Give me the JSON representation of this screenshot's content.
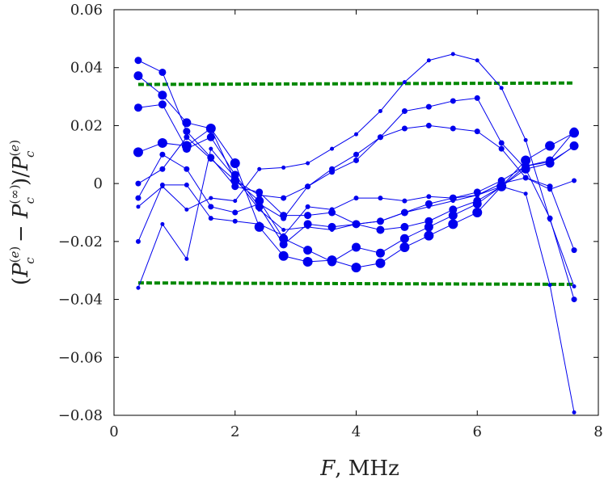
{
  "chart_data": {
    "type": "line",
    "title": "",
    "xlabel": "F, MHz",
    "ylabel": "(P_c^(e) − P_c^(∞)) / P_c^(e)",
    "xlim": [
      0,
      8
    ],
    "ylim": [
      -0.08,
      0.06
    ],
    "xticks": [
      0,
      2,
      4,
      6,
      8
    ],
    "xtick_labels": [
      "0",
      "2",
      "4",
      "6",
      "8"
    ],
    "yticks": [
      -0.08,
      -0.06,
      -0.04,
      -0.02,
      0,
      0.02,
      0.04,
      0.06
    ],
    "ytick_labels": [
      "−0.08",
      "−0.06",
      "−0.04",
      "−0.02",
      "0",
      "0.02",
      "0.04",
      "0.06"
    ],
    "grid": false,
    "x": [
      0.4,
      0.8,
      1.2,
      1.6,
      2.0,
      2.4,
      2.8,
      3.2,
      3.6,
      4.0,
      4.4,
      4.8,
      5.2,
      5.6,
      6.0,
      6.4,
      6.8,
      7.2,
      7.6
    ],
    "series": [
      {
        "color": "#0000ee",
        "marker_size": 4.5,
        "values": [
          0.0425,
          0.0384,
          0.018,
          0.009,
          -0.001,
          -0.003,
          -0.011,
          -0.011,
          -0.01,
          -0.014,
          -0.013,
          -0.01,
          -0.007,
          -0.005,
          -0.003,
          0.001,
          0.006,
          0.0075,
          0.0128
        ]
      },
      {
        "color": "#0000ee",
        "marker_size": 5.5,
        "values": [
          0.0372,
          0.0305,
          0.021,
          0.019,
          0.001,
          -0.006,
          -0.019,
          -0.023,
          -0.027,
          -0.022,
          -0.024,
          -0.019,
          -0.015,
          -0.011,
          -0.007,
          -0.001,
          0.005,
          0.007,
          0.013
        ]
      },
      {
        "color": "#0000ee",
        "marker_size": 5,
        "values": [
          0.0262,
          0.0273,
          0.012,
          0.016,
          0.003,
          -0.008,
          -0.021,
          -0.014,
          -0.015,
          -0.014,
          -0.016,
          -0.015,
          -0.013,
          -0.009,
          -0.006,
          -0.001,
          0.006,
          0.008,
          0.018
        ]
      },
      {
        "color": "#0000ee",
        "marker_size": 6,
        "values": [
          0.0108,
          0.014,
          0.013,
          0.019,
          0.007,
          -0.015,
          -0.025,
          -0.027,
          -0.0265,
          -0.029,
          -0.0275,
          -0.022,
          -0.018,
          -0.014,
          -0.01,
          -0.001,
          0.008,
          0.013,
          0.0175
        ]
      },
      {
        "color": "#0000ee",
        "marker_size": 3,
        "values": [
          -0.02,
          -0.0005,
          -0.0005,
          -0.012,
          -0.013,
          -0.014,
          -0.018,
          -0.008,
          -0.009,
          -0.005,
          -0.005,
          -0.006,
          -0.0045,
          -0.005,
          -0.004,
          0.0,
          0.002,
          -0.002,
          0.001
        ]
      },
      {
        "color": "#0000ee",
        "marker_size": 3.5,
        "values": [
          0.0,
          0.005,
          0.016,
          0.0085,
          0.001,
          -0.004,
          -0.005,
          -0.001,
          0.005,
          0.01,
          0.016,
          0.025,
          0.0265,
          0.0285,
          0.0295,
          0.014,
          0.005,
          -0.012,
          -0.04
        ]
      },
      {
        "color": "#0000ee",
        "marker_size": 3.5,
        "values": [
          -0.005,
          0.01,
          0.005,
          -0.008,
          -0.01,
          -0.007,
          -0.012,
          -0.001,
          0.004,
          0.008,
          0.016,
          0.019,
          0.02,
          0.019,
          0.018,
          0.012,
          0.002,
          -0.001,
          -0.023
        ]
      },
      {
        "color": "#0000ee",
        "marker_size": 2.5,
        "values": [
          -0.008,
          -0.001,
          -0.009,
          -0.005,
          -0.006,
          0.005,
          0.0055,
          0.007,
          0.012,
          0.017,
          0.025,
          0.035,
          0.0425,
          0.0447,
          0.0425,
          0.033,
          0.015,
          -0.0125,
          -0.0355
        ]
      },
      {
        "color": "#0000ee",
        "marker_size": 2.5,
        "values": [
          -0.036,
          -0.014,
          -0.026,
          0.012,
          0.002,
          -0.009,
          -0.016,
          -0.015,
          -0.016,
          -0.014,
          -0.013,
          -0.01,
          -0.008,
          -0.006,
          -0.004,
          -0.001,
          -0.0035,
          -0.035,
          -0.079
        ]
      }
    ],
    "reference_lines": [
      {
        "color": "#008800",
        "style": "dashed",
        "x": [
          0.4,
          7.6
        ],
        "values": [
          0.0342,
          0.0347
        ]
      },
      {
        "color": "#008800",
        "style": "dashed",
        "x": [
          0.4,
          7.6
        ],
        "values": [
          -0.0343,
          -0.0348
        ]
      }
    ]
  }
}
